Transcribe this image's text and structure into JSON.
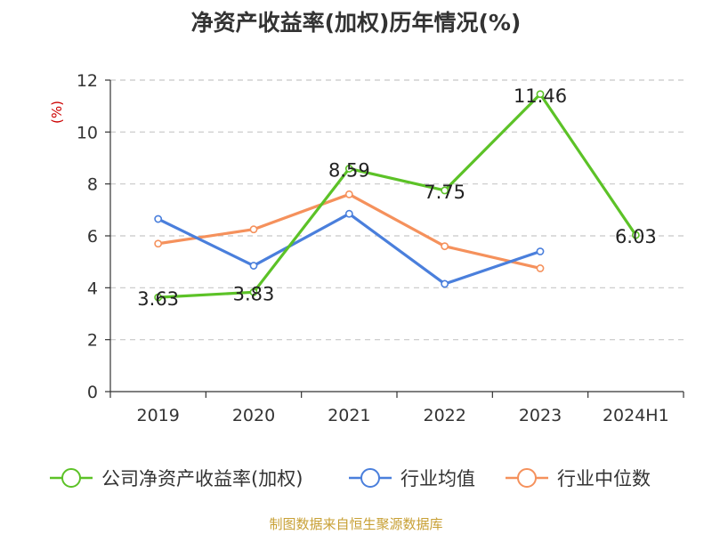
{
  "chart_data": {
    "type": "line",
    "title": "净资产收益率(加权)历年情况(%)",
    "ylabel": "(%)",
    "categories": [
      "2019",
      "2020",
      "2021",
      "2022",
      "2023",
      "2024H1"
    ],
    "ylim": [
      0,
      12
    ],
    "yticks": [
      0,
      2,
      4,
      6,
      8,
      10,
      12
    ],
    "grid": true,
    "legend_position": "bottom",
    "series": [
      {
        "name": "公司净资产收益率(加权)",
        "color": "#5cc227",
        "values": [
          3.63,
          3.83,
          8.59,
          7.75,
          11.46,
          6.03
        ],
        "labels": [
          "3.63",
          "3.83",
          "8.59",
          "7.75",
          "11.46",
          "6.03"
        ]
      },
      {
        "name": "行业均值",
        "color": "#4a7fdc",
        "values": [
          6.65,
          4.85,
          6.85,
          4.15,
          5.4,
          null
        ]
      },
      {
        "name": "行业中位数",
        "color": "#f5915c",
        "values": [
          5.7,
          6.25,
          7.6,
          5.6,
          4.75,
          null
        ]
      }
    ]
  },
  "source": "制图数据来自恒生聚源数据库"
}
